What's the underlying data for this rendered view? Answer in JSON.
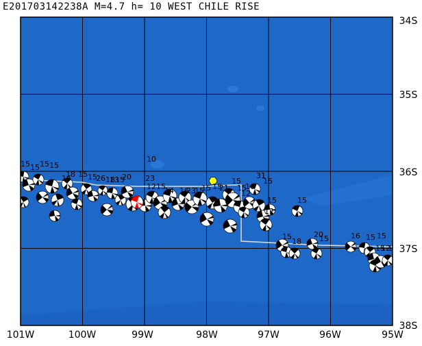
{
  "header": {
    "event_id": "E201703142238A",
    "magnitude": "M=4.7",
    "depth": "h= 10",
    "region": "WEST CHILE RISE"
  },
  "axes": {
    "lon_labels": [
      "101W",
      "100W",
      "99W",
      "98W",
      "97W",
      "96W",
      "95W"
    ],
    "lat_labels": [
      "34S",
      "35S",
      "36S",
      "37S",
      "38S"
    ]
  },
  "map_style": {
    "ocean_color": "#1e68c8",
    "deep_ocean_color": "#1a60c0",
    "ridge_color": "#2a78d8",
    "grid_color": "#000000",
    "plate_boundary_color": "#e0e0e0"
  },
  "focal_mechanisms": {
    "highlight_event_color": "#ff0000",
    "epicenter_marker_color": "#ffff00",
    "depth_labels": [
      "15",
      "15",
      "15",
      "15",
      "18",
      "15",
      "16",
      "15",
      "26",
      "18",
      "13",
      "15",
      "20",
      "23",
      "15",
      "10",
      "12",
      "14",
      "16",
      "23",
      "15",
      "15",
      "15",
      "21",
      "15",
      "15",
      "16",
      "12",
      "31",
      "15",
      "15",
      "12",
      "15",
      "15",
      "18",
      "20",
      "15",
      "16",
      "15",
      "15",
      "15",
      "12",
      "15"
    ]
  }
}
